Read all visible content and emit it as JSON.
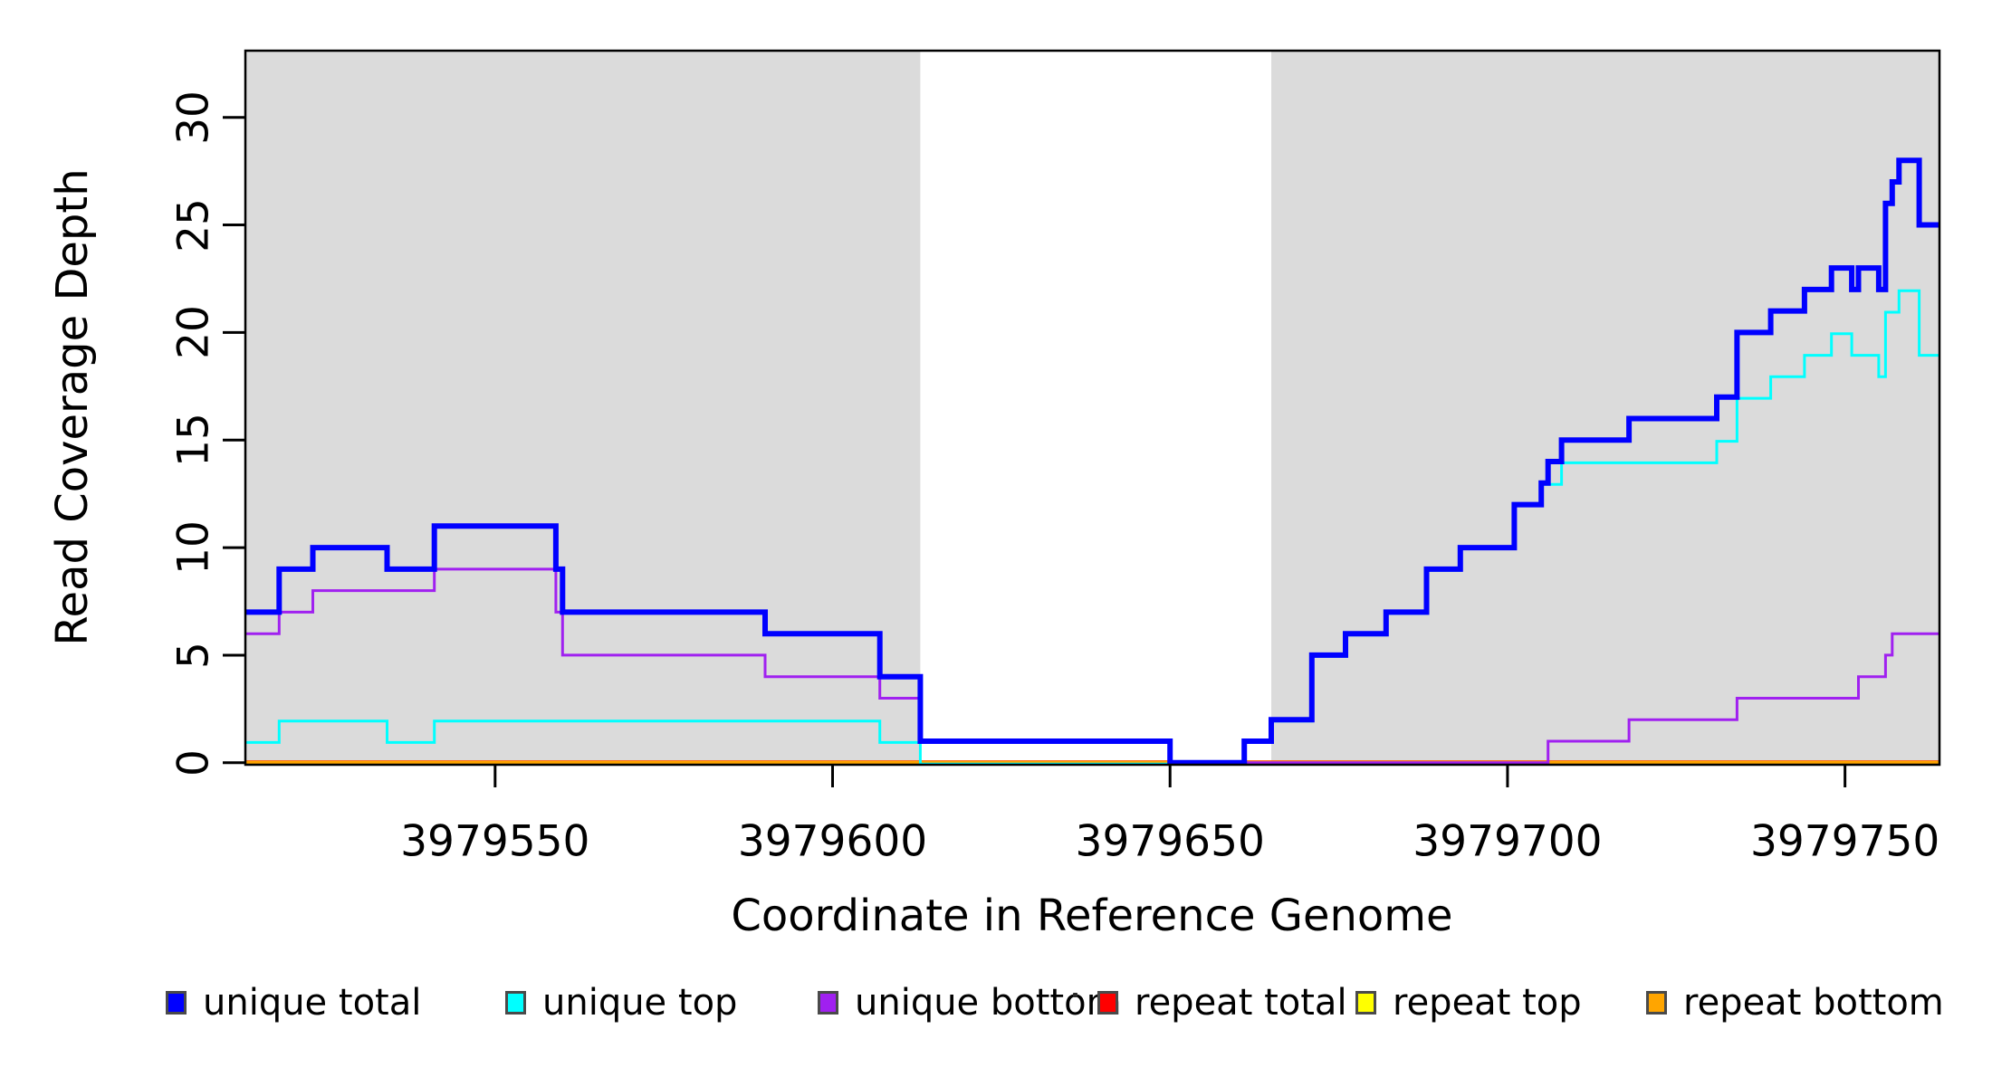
{
  "figure": {
    "background": "#ffffff",
    "shade_color": "#DBDBDB",
    "box_color": "#000000"
  },
  "chart_data": {
    "type": "line",
    "subtype": "step",
    "title": "",
    "xlabel": "Coordinate in Reference Genome",
    "ylabel": "Read Coverage Depth",
    "xlim": [
      3979513,
      3979764
    ],
    "ylim": [
      0,
      33.1
    ],
    "x_ticks": [
      3979550,
      3979600,
      3979650,
      3979700,
      3979750
    ],
    "y_ticks": [
      0,
      5,
      10,
      15,
      20,
      25,
      30
    ],
    "grid": false,
    "legend_position": "bottom",
    "shade_color": "#DBDBDB",
    "shaded_regions": [
      [
        3979513,
        3979613
      ],
      [
        3979665,
        3979764
      ]
    ],
    "x_breakpoints": [
      3979513,
      3979518,
      3979523,
      3979534,
      3979541,
      3979559,
      3979560,
      3979590,
      3979607,
      3979613,
      3979650,
      3979661,
      3979665,
      3979671,
      3979676,
      3979682,
      3979688,
      3979693,
      3979701,
      3979705,
      3979706,
      3979708,
      3979718,
      3979731,
      3979734,
      3979739,
      3979744,
      3979748,
      3979751,
      3979752,
      3979755,
      3979756,
      3979757,
      3979758,
      3979761
    ],
    "series": [
      {
        "name": "unique total",
        "color": "#0000FF",
        "linewidth": 6,
        "values": [
          7,
          9,
          10,
          9,
          11,
          9,
          7,
          6,
          4,
          1,
          0,
          1,
          2,
          5,
          6,
          7,
          9,
          10,
          12,
          13,
          14,
          15,
          16,
          17,
          20,
          21,
          22,
          23,
          22,
          23,
          22,
          26,
          27,
          28,
          25
        ]
      },
      {
        "name": "unique top",
        "color": "#00FFFF",
        "linewidth": 3,
        "values": [
          1,
          2,
          2,
          1,
          2,
          2,
          2,
          2,
          1,
          0,
          0,
          1,
          2,
          5,
          6,
          7,
          9,
          10,
          12,
          13,
          13,
          14,
          14,
          15,
          17,
          18,
          19,
          20,
          19,
          19,
          18,
          21,
          21,
          22,
          19
        ]
      },
      {
        "name": "unique bottom",
        "color": "#A020F0",
        "linewidth": 3,
        "values": [
          6,
          7,
          8,
          8,
          9,
          7,
          5,
          4,
          3,
          1,
          0,
          0,
          0,
          0,
          0,
          0,
          0,
          0,
          0,
          0,
          1,
          1,
          2,
          2,
          3,
          3,
          3,
          3,
          3,
          4,
          4,
          5,
          6,
          6,
          6
        ]
      },
      {
        "name": "repeat total",
        "color": "#FF0000",
        "linewidth": 3,
        "values": [
          0,
          0,
          0,
          0,
          0,
          0,
          0,
          0,
          0,
          0,
          0,
          0,
          0,
          0,
          0,
          0,
          0,
          0,
          0,
          0,
          0,
          0,
          0,
          0,
          0,
          0,
          0,
          0,
          0,
          0,
          0,
          0,
          0,
          0,
          0
        ]
      },
      {
        "name": "repeat top",
        "color": "#FFFF00",
        "linewidth": 2.5,
        "values": [
          0,
          0,
          0,
          0,
          0,
          0,
          0,
          0,
          0,
          0,
          0,
          0,
          0,
          0,
          0,
          0,
          0,
          0,
          0,
          0,
          0,
          0,
          0,
          0,
          0,
          0,
          0,
          0,
          0,
          0,
          0,
          0,
          0,
          0,
          0
        ]
      },
      {
        "name": "repeat bottom",
        "color": "#FFA500",
        "linewidth": 4.5,
        "values": [
          0,
          0,
          0,
          0,
          0,
          0,
          0,
          0,
          0,
          0,
          0,
          0,
          0,
          0,
          0,
          0,
          0,
          0,
          0,
          0,
          0,
          0,
          0,
          0,
          0,
          0,
          0,
          0,
          0,
          0,
          0,
          0,
          0,
          0,
          0
        ]
      }
    ]
  },
  "legend": {
    "items": [
      {
        "label": "unique total",
        "color": "#0000FF"
      },
      {
        "label": "unique top",
        "color": "#00FFFF"
      },
      {
        "label": "unique bottom",
        "color": "#A020F0"
      },
      {
        "label": "repeat total",
        "color": "#FF0000"
      },
      {
        "label": "repeat top",
        "color": "#FFFF00"
      },
      {
        "label": "repeat bottom",
        "color": "#FFA500"
      }
    ],
    "artifact_dot": "·"
  }
}
